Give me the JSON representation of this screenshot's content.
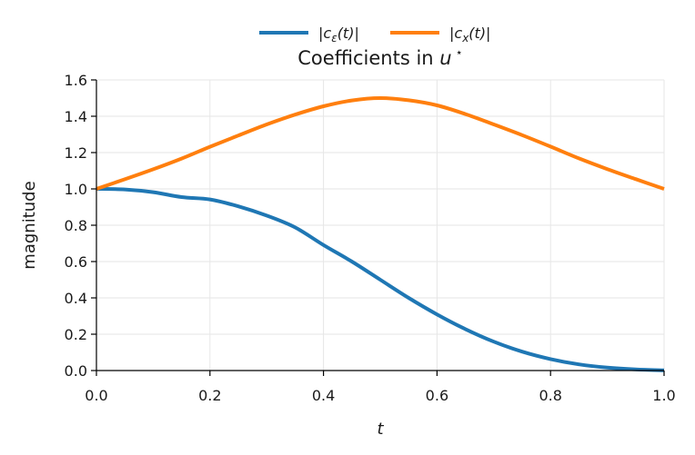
{
  "chart_data": {
    "type": "line",
    "title": "Coefficients in u⋆",
    "title_parts": {
      "prefix": "Coefficients in ",
      "var": "u",
      "sup": "⋆"
    },
    "xlabel": "t",
    "ylabel": "magnitude",
    "xlim": [
      0.0,
      1.0
    ],
    "ylim": [
      0.0,
      1.6
    ],
    "x_ticks": [
      0.0,
      0.2,
      0.4,
      0.6,
      0.8,
      1.0
    ],
    "x_tick_labels": [
      "0.0",
      "0.2",
      "0.4",
      "0.6",
      "0.8",
      "1.0"
    ],
    "y_ticks": [
      0.0,
      0.2,
      0.4,
      0.6,
      0.8,
      1.0,
      1.2,
      1.4,
      1.6
    ],
    "y_tick_labels": [
      "0.0",
      "0.2",
      "0.4",
      "0.6",
      "0.8",
      "1.0",
      "1.2",
      "1.4",
      "1.6"
    ],
    "grid": true,
    "legend_position": "top-center",
    "x": [
      0.0,
      0.05,
      0.1,
      0.15,
      0.2,
      0.25,
      0.3,
      0.35,
      0.4,
      0.45,
      0.5,
      0.55,
      0.6,
      0.65,
      0.7,
      0.75,
      0.8,
      0.85,
      0.9,
      0.95,
      1.0
    ],
    "series": [
      {
        "name": "|cε(t)|",
        "label_parts": {
          "pre": "|c",
          "sub": "ε",
          "post": "(t)|"
        },
        "color": "#1f77b4",
        "values": [
          1.0,
          0.997,
          0.982,
          0.955,
          0.942,
          0.904,
          0.853,
          0.788,
          0.691,
          0.6,
          0.5,
          0.4,
          0.309,
          0.228,
          0.159,
          0.104,
          0.063,
          0.034,
          0.016,
          0.006,
          0.001
        ]
      },
      {
        "name": "|cx(t)|",
        "label_parts": {
          "pre": "|c",
          "sub": "x",
          "post": "(t)|"
        },
        "color": "#ff7f0e",
        "values": [
          1.0,
          1.053,
          1.108,
          1.167,
          1.232,
          1.294,
          1.355,
          1.409,
          1.455,
          1.487,
          1.5,
          1.488,
          1.46,
          1.412,
          1.355,
          1.296,
          1.233,
          1.168,
          1.109,
          1.054,
          1.0
        ]
      }
    ]
  }
}
